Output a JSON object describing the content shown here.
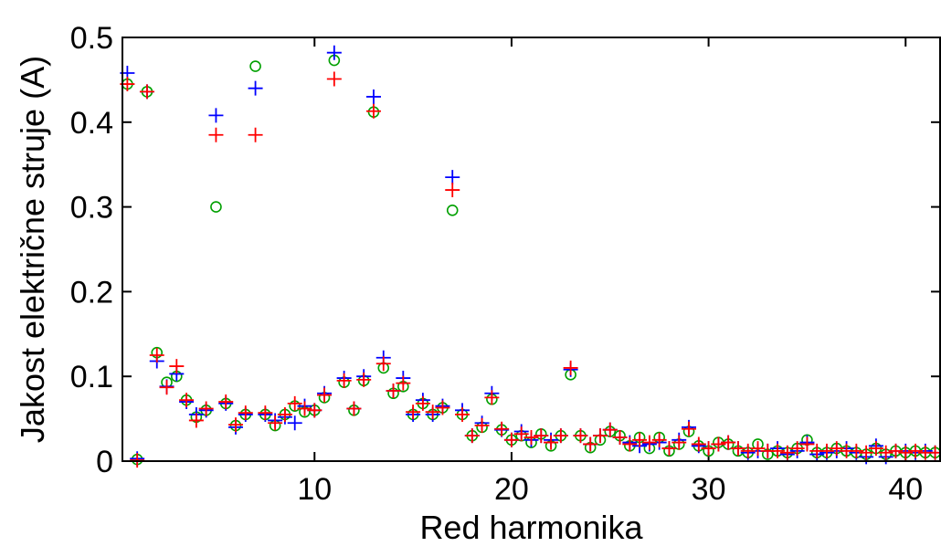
{
  "chart_data": {
    "type": "scatter",
    "title": "",
    "xlabel": "Red harmonika",
    "ylabel": "Jakost električne struje (A)",
    "xlim": [
      0.25,
      41.75
    ],
    "ylim": [
      0,
      0.5
    ],
    "xticks": [
      10,
      20,
      30,
      40
    ],
    "yticks": [
      0,
      0.1,
      0.2,
      0.3,
      0.4,
      0.5
    ],
    "xtick_labels": [
      "10",
      "20",
      "30",
      "40"
    ],
    "ytick_labels": [
      "0",
      "0.1",
      "0.2",
      "0.3",
      "0.4",
      "0.5"
    ],
    "grid": false,
    "legend": "none",
    "series": [
      {
        "marker": "circle",
        "color": "#00a000",
        "points": [
          [
            0.5,
            0.445
          ],
          [
            1,
            0.002
          ],
          [
            1.5,
            0.436
          ],
          [
            2,
            0.128
          ],
          [
            2.5,
            0.093
          ],
          [
            3,
            0.1
          ],
          [
            3.5,
            0.072
          ],
          [
            4,
            0.052
          ],
          [
            4.5,
            0.06
          ],
          [
            5,
            0.3
          ],
          [
            5.5,
            0.068
          ],
          [
            6,
            0.042
          ],
          [
            6.5,
            0.055
          ],
          [
            7,
            0.466
          ],
          [
            7.5,
            0.055
          ],
          [
            8,
            0.042
          ],
          [
            8.5,
            0.055
          ],
          [
            9,
            0.065
          ],
          [
            9.5,
            0.058
          ],
          [
            10,
            0.06
          ],
          [
            10.5,
            0.075
          ],
          [
            11,
            0.473
          ],
          [
            11.5,
            0.093
          ],
          [
            12,
            0.06
          ],
          [
            12.5,
            0.095
          ],
          [
            13,
            0.412
          ],
          [
            13.5,
            0.11
          ],
          [
            14,
            0.08
          ],
          [
            14.5,
            0.088
          ],
          [
            15,
            0.055
          ],
          [
            15.5,
            0.068
          ],
          [
            16,
            0.055
          ],
          [
            16.5,
            0.063
          ],
          [
            17,
            0.296
          ],
          [
            17.5,
            0.055
          ],
          [
            18,
            0.03
          ],
          [
            18.5,
            0.04
          ],
          [
            19,
            0.073
          ],
          [
            19.5,
            0.037
          ],
          [
            20,
            0.025
          ],
          [
            20.5,
            0.03
          ],
          [
            21,
            0.022
          ],
          [
            21.5,
            0.032
          ],
          [
            22,
            0.018
          ],
          [
            22.5,
            0.03
          ],
          [
            23,
            0.102
          ],
          [
            23.5,
            0.03
          ],
          [
            24,
            0.016
          ],
          [
            24.5,
            0.025
          ],
          [
            25,
            0.035
          ],
          [
            25.5,
            0.03
          ],
          [
            26,
            0.018
          ],
          [
            26.5,
            0.028
          ],
          [
            27,
            0.015
          ],
          [
            27.5,
            0.028
          ],
          [
            28,
            0.012
          ],
          [
            28.5,
            0.02
          ],
          [
            29,
            0.035
          ],
          [
            29.5,
            0.018
          ],
          [
            30,
            0.012
          ],
          [
            30.5,
            0.022
          ],
          [
            31,
            0.02
          ],
          [
            31.5,
            0.012
          ],
          [
            32,
            0.01
          ],
          [
            32.5,
            0.02
          ],
          [
            33,
            0.008
          ],
          [
            33.5,
            0.012
          ],
          [
            34,
            0.01
          ],
          [
            34.5,
            0.015
          ],
          [
            35,
            0.025
          ],
          [
            35.5,
            0.01
          ],
          [
            36,
            0.01
          ],
          [
            36.5,
            0.015
          ],
          [
            37,
            0.012
          ],
          [
            37.5,
            0.01
          ],
          [
            38,
            0.008
          ],
          [
            38.5,
            0.015
          ],
          [
            39,
            0.008
          ],
          [
            39.5,
            0.012
          ],
          [
            40,
            0.01
          ],
          [
            40.5,
            0.012
          ],
          [
            41,
            0.01
          ],
          [
            41.5,
            0.01
          ]
        ]
      },
      {
        "marker": "plus",
        "color": "#0000ff",
        "points": [
          [
            0.5,
            0.458
          ],
          [
            1,
            0.003
          ],
          [
            1.5,
            0.436
          ],
          [
            2,
            0.118
          ],
          [
            2.5,
            0.088
          ],
          [
            3,
            0.103
          ],
          [
            3.5,
            0.07
          ],
          [
            4,
            0.055
          ],
          [
            4.5,
            0.06
          ],
          [
            5,
            0.408
          ],
          [
            5.5,
            0.068
          ],
          [
            6,
            0.04
          ],
          [
            6.5,
            0.055
          ],
          [
            7,
            0.44
          ],
          [
            7.5,
            0.055
          ],
          [
            8,
            0.048
          ],
          [
            8.5,
            0.052
          ],
          [
            9,
            0.045
          ],
          [
            9.5,
            0.065
          ],
          [
            10,
            0.06
          ],
          [
            10.5,
            0.08
          ],
          [
            11,
            0.482
          ],
          [
            11.5,
            0.098
          ],
          [
            12,
            0.062
          ],
          [
            12.5,
            0.1
          ],
          [
            13,
            0.43
          ],
          [
            13.5,
            0.122
          ],
          [
            14,
            0.083
          ],
          [
            14.5,
            0.098
          ],
          [
            15,
            0.055
          ],
          [
            15.5,
            0.072
          ],
          [
            16,
            0.055
          ],
          [
            16.5,
            0.065
          ],
          [
            17,
            0.335
          ],
          [
            17.5,
            0.06
          ],
          [
            18,
            0.03
          ],
          [
            18.5,
            0.045
          ],
          [
            19,
            0.08
          ],
          [
            19.5,
            0.037
          ],
          [
            20,
            0.025
          ],
          [
            20.5,
            0.035
          ],
          [
            21,
            0.025
          ],
          [
            21.5,
            0.03
          ],
          [
            22,
            0.025
          ],
          [
            22.5,
            0.03
          ],
          [
            23,
            0.108
          ],
          [
            23.5,
            0.03
          ],
          [
            24,
            0.02
          ],
          [
            24.5,
            0.03
          ],
          [
            25,
            0.037
          ],
          [
            25.5,
            0.028
          ],
          [
            26,
            0.022
          ],
          [
            26.5,
            0.018
          ],
          [
            27,
            0.02
          ],
          [
            27.5,
            0.022
          ],
          [
            28,
            0.015
          ],
          [
            28.5,
            0.025
          ],
          [
            29,
            0.04
          ],
          [
            29.5,
            0.018
          ],
          [
            30,
            0.015
          ],
          [
            30.5,
            0.02
          ],
          [
            31,
            0.022
          ],
          [
            31.5,
            0.015
          ],
          [
            32,
            0.01
          ],
          [
            32.5,
            0.012
          ],
          [
            33,
            0.012
          ],
          [
            33.5,
            0.015
          ],
          [
            34,
            0.008
          ],
          [
            34.5,
            0.012
          ],
          [
            35,
            0.022
          ],
          [
            35.5,
            0.008
          ],
          [
            36,
            0.01
          ],
          [
            36.5,
            0.012
          ],
          [
            37,
            0.015
          ],
          [
            37.5,
            0.01
          ],
          [
            38,
            0.005
          ],
          [
            38.5,
            0.018
          ],
          [
            39,
            0.005
          ],
          [
            39.5,
            0.012
          ],
          [
            40,
            0.012
          ],
          [
            40.5,
            0.01
          ],
          [
            41,
            0.012
          ],
          [
            41.5,
            0.01
          ]
        ]
      },
      {
        "marker": "plus",
        "color": "#ff0000",
        "points": [
          [
            0.5,
            0.445
          ],
          [
            1,
            0.001
          ],
          [
            1.5,
            0.436
          ],
          [
            2,
            0.125
          ],
          [
            2.5,
            0.087
          ],
          [
            3,
            0.112
          ],
          [
            3.5,
            0.072
          ],
          [
            4,
            0.048
          ],
          [
            4.5,
            0.062
          ],
          [
            5,
            0.385
          ],
          [
            5.5,
            0.07
          ],
          [
            6,
            0.043
          ],
          [
            6.5,
            0.057
          ],
          [
            7,
            0.385
          ],
          [
            7.5,
            0.057
          ],
          [
            8,
            0.045
          ],
          [
            8.5,
            0.055
          ],
          [
            9,
            0.068
          ],
          [
            9.5,
            0.062
          ],
          [
            10,
            0.06
          ],
          [
            10.5,
            0.078
          ],
          [
            11,
            0.451
          ],
          [
            11.5,
            0.095
          ],
          [
            12,
            0.062
          ],
          [
            12.5,
            0.096
          ],
          [
            13,
            0.413
          ],
          [
            13.5,
            0.115
          ],
          [
            14,
            0.083
          ],
          [
            14.5,
            0.092
          ],
          [
            15,
            0.058
          ],
          [
            15.5,
            0.068
          ],
          [
            16,
            0.058
          ],
          [
            16.5,
            0.063
          ],
          [
            17,
            0.32
          ],
          [
            17.5,
            0.055
          ],
          [
            18,
            0.03
          ],
          [
            18.5,
            0.042
          ],
          [
            19,
            0.075
          ],
          [
            19.5,
            0.038
          ],
          [
            20,
            0.025
          ],
          [
            20.5,
            0.032
          ],
          [
            21,
            0.028
          ],
          [
            21.5,
            0.03
          ],
          [
            22,
            0.022
          ],
          [
            22.5,
            0.03
          ],
          [
            23,
            0.11
          ],
          [
            23.5,
            0.03
          ],
          [
            24,
            0.02
          ],
          [
            24.5,
            0.03
          ],
          [
            25,
            0.037
          ],
          [
            25.5,
            0.028
          ],
          [
            26,
            0.02
          ],
          [
            26.5,
            0.025
          ],
          [
            27,
            0.022
          ],
          [
            27.5,
            0.025
          ],
          [
            28,
            0.015
          ],
          [
            28.5,
            0.022
          ],
          [
            29,
            0.038
          ],
          [
            29.5,
            0.02
          ],
          [
            30,
            0.015
          ],
          [
            30.5,
            0.02
          ],
          [
            31,
            0.022
          ],
          [
            31.5,
            0.015
          ],
          [
            32,
            0.012
          ],
          [
            32.5,
            0.015
          ],
          [
            33,
            0.012
          ],
          [
            33.5,
            0.012
          ],
          [
            34,
            0.01
          ],
          [
            34.5,
            0.015
          ],
          [
            35,
            0.02
          ],
          [
            35.5,
            0.012
          ],
          [
            36,
            0.012
          ],
          [
            36.5,
            0.015
          ],
          [
            37,
            0.012
          ],
          [
            37.5,
            0.012
          ],
          [
            38,
            0.01
          ],
          [
            38.5,
            0.015
          ],
          [
            39,
            0.01
          ],
          [
            39.5,
            0.012
          ],
          [
            40,
            0.01
          ],
          [
            40.5,
            0.012
          ],
          [
            41,
            0.01
          ],
          [
            41.5,
            0.01
          ]
        ]
      }
    ]
  }
}
